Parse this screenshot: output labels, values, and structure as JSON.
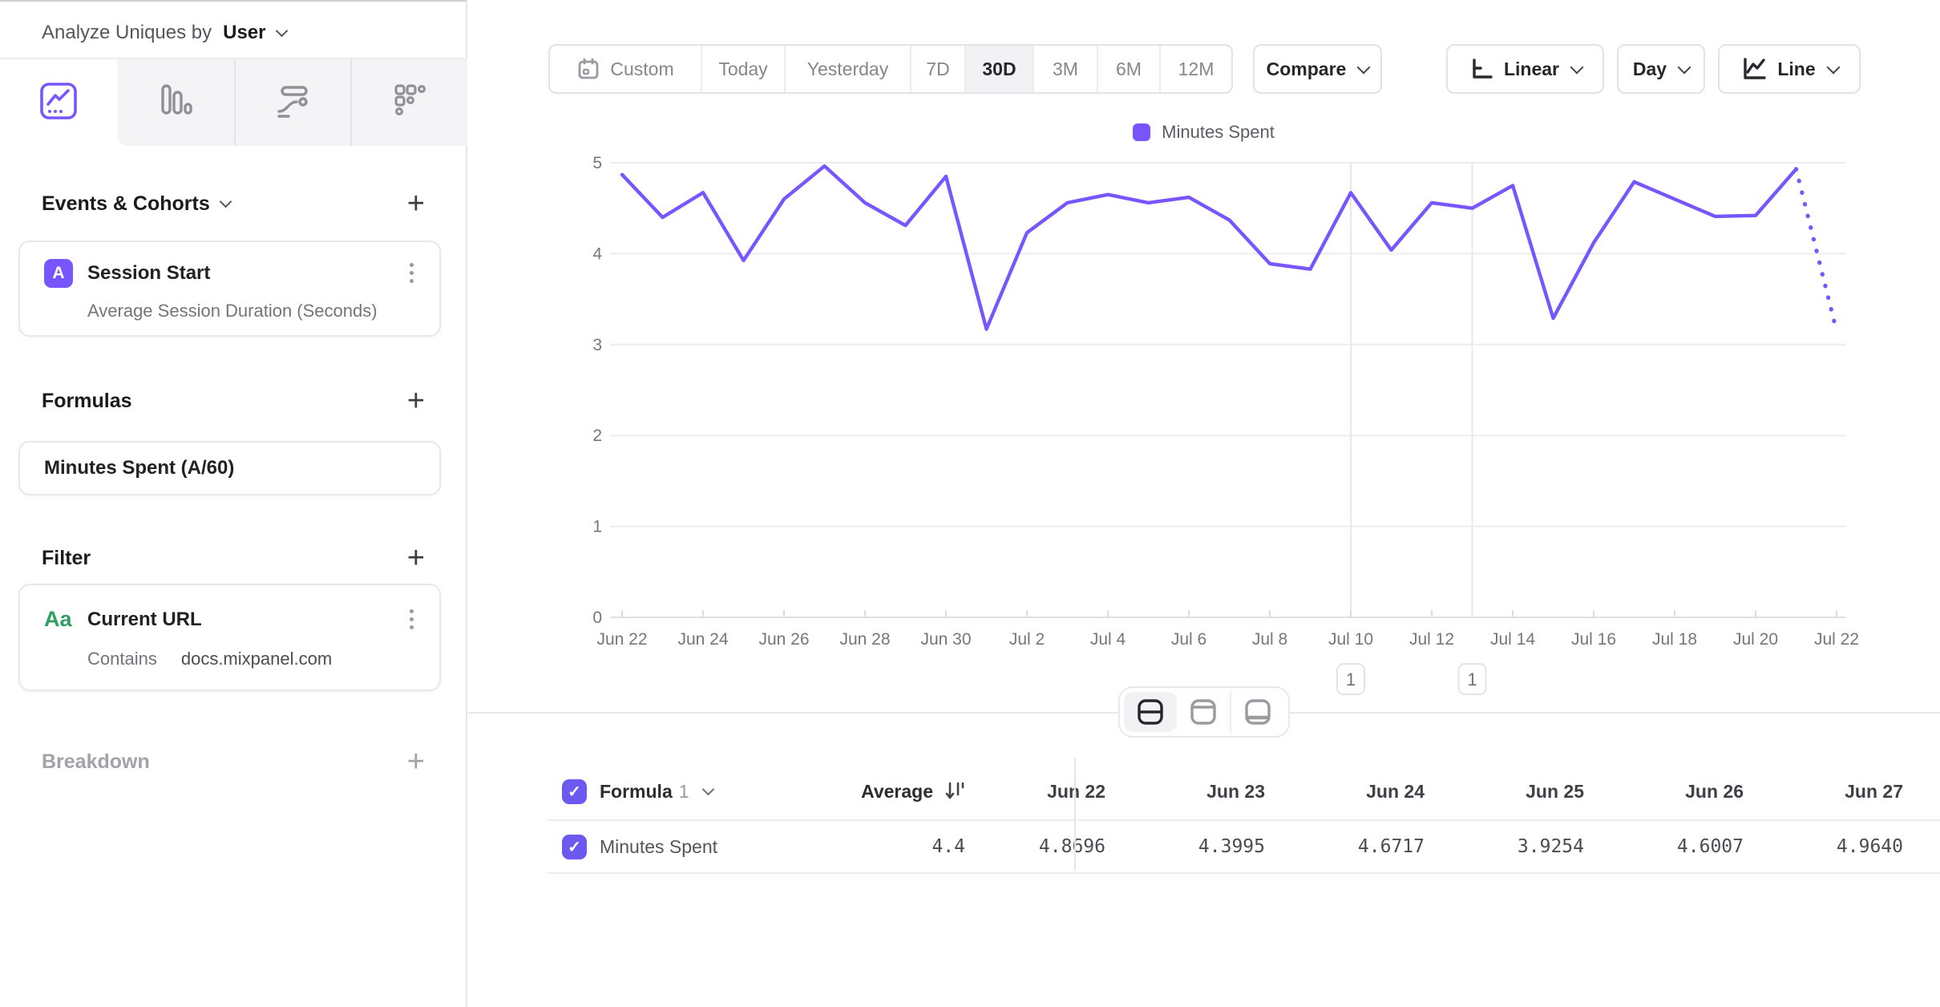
{
  "sidebar": {
    "analyze": {
      "label": "Analyze Uniques by",
      "value": "User"
    },
    "tabs": [
      {
        "icon": "line-chart-tab-icon",
        "active": true
      },
      {
        "icon": "bar-chart-tab-icon",
        "active": false
      },
      {
        "icon": "flows-tab-icon",
        "active": false
      },
      {
        "icon": "metrics-grid-tab-icon",
        "active": false
      }
    ],
    "events": {
      "heading": "Events & Cohorts",
      "badge": "A",
      "event_name": "Session Start",
      "metric": "Average Session Duration (Seconds)"
    },
    "formulas": {
      "heading": "Formulas",
      "formula_name": "Minutes Spent (A/60)"
    },
    "filter": {
      "heading": "Filter",
      "type_icon": "Aa",
      "property_name": "Current URL",
      "operator": "Contains",
      "value": "docs.mixpanel.com"
    },
    "breakdown": {
      "heading": "Breakdown"
    }
  },
  "toolbar": {
    "date_ranges": [
      "Custom",
      "Today",
      "Yesterday",
      "7D",
      "30D",
      "3M",
      "6M",
      "12M"
    ],
    "active_range": "30D",
    "compare": "Compare",
    "scale": "Linear",
    "interval": "Day",
    "chart_type": "Line"
  },
  "chart_data": {
    "type": "line",
    "title": "",
    "x": [
      "Jun 22",
      "Jun 23",
      "Jun 24",
      "Jun 25",
      "Jun 26",
      "Jun 27",
      "Jun 28",
      "Jun 29",
      "Jun 30",
      "Jul 1",
      "Jul 2",
      "Jul 3",
      "Jul 4",
      "Jul 5",
      "Jul 6",
      "Jul 7",
      "Jul 8",
      "Jul 9",
      "Jul 10",
      "Jul 11",
      "Jul 12",
      "Jul 13",
      "Jul 14",
      "Jul 15",
      "Jul 16",
      "Jul 17",
      "Jul 18",
      "Jul 19",
      "Jul 20",
      "Jul 21",
      "Jul 22"
    ],
    "series": [
      {
        "name": "Minutes Spent",
        "color": "#7856FF",
        "values": [
          4.8696,
          4.3995,
          4.6717,
          3.9254,
          4.6007,
          4.964,
          4.56,
          4.31,
          4.85,
          3.17,
          4.23,
          4.56,
          4.65,
          4.56,
          4.62,
          4.37,
          3.89,
          3.83,
          4.67,
          4.04,
          4.56,
          4.5,
          4.75,
          3.29,
          4.12,
          4.79,
          4.6,
          4.41,
          4.42,
          4.93,
          3.15
        ]
      }
    ],
    "last_segment_dotted": true,
    "ylim": [
      0,
      5
    ],
    "yticks": [
      0,
      1,
      2,
      3,
      4,
      5
    ],
    "x_tick_labels": [
      "Jun 22",
      "Jun 24",
      "Jun 26",
      "Jun 28",
      "Jun 30",
      "Jul 2",
      "Jul 4",
      "Jul 6",
      "Jul 8",
      "Jul 10",
      "Jul 12",
      "Jul 14",
      "Jul 16",
      "Jul 18",
      "Jul 20",
      "Jul 22"
    ],
    "grid": "horizontal",
    "legend_position": "top-center",
    "annotations": [
      {
        "label": "1",
        "x": "Jul 10",
        "day_index": 18
      },
      {
        "label": "1",
        "x": "Jul 13",
        "day_index": 21
      }
    ]
  },
  "view_toggle": {
    "options": [
      "split-view",
      "chart-only",
      "table-only"
    ],
    "active": "split-view"
  },
  "table": {
    "header": {
      "group": "Formula",
      "group_index": "1",
      "average": "Average",
      "dates": [
        "Jun 22",
        "Jun 23",
        "Jun 24",
        "Jun 25",
        "Jun 26",
        "Jun 27"
      ]
    },
    "rows": [
      {
        "checked": true,
        "name": "Minutes Spent",
        "average": "4.4",
        "values": [
          "4.8696",
          "4.3995",
          "4.6717",
          "3.9254",
          "4.6007",
          "4.9640"
        ]
      }
    ]
  },
  "colors": {
    "accent": "#7856FF",
    "checkbox": "#6b59f0",
    "string_type_green": "#2f9e62",
    "axis_text": "#76767c",
    "border": "#e7e7ea"
  }
}
